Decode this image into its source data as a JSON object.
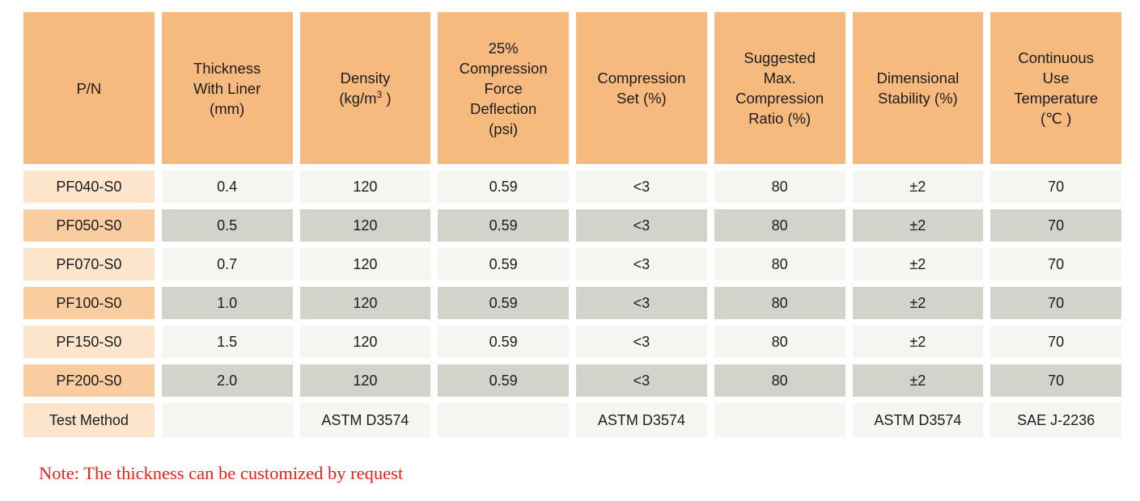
{
  "colors": {
    "header_bg": "#F6BA7F",
    "label_light": "#FCE5CB",
    "label_dark": "#F9CDA0",
    "cell_light": "#F5F5F1",
    "cell_dark": "#D3D3CB",
    "note_color": "#EC2018",
    "text_color": "#1C1C1C"
  },
  "table": {
    "headers": [
      {
        "id": "pn",
        "label": "P/N",
        "lines": [
          [
            {
              "t": "P/N"
            }
          ]
        ]
      },
      {
        "id": "thickness",
        "label": "Thickness With Liner (mm)",
        "lines": [
          [
            {
              "t": "Thickness"
            }
          ],
          [
            {
              "t": "With Liner"
            }
          ],
          [
            {
              "t": "(mm)"
            }
          ]
        ]
      },
      {
        "id": "density",
        "label": "Density (kg/m3 )",
        "lines": [
          [
            {
              "t": "Density"
            }
          ],
          [
            {
              "t": "(kg/m"
            },
            {
              "t": "3",
              "sup": true
            },
            {
              "t": " )"
            }
          ]
        ]
      },
      {
        "id": "cfd",
        "label": "25% Compression Force Deflection (psi)",
        "lines": [
          [
            {
              "t": "25%"
            }
          ],
          [
            {
              "t": "Compression"
            }
          ],
          [
            {
              "t": "Force"
            }
          ],
          [
            {
              "t": "Deflection"
            }
          ],
          [
            {
              "t": "(psi)"
            }
          ]
        ]
      },
      {
        "id": "compression-set",
        "label": "Compression Set (%)",
        "lines": [
          [
            {
              "t": "Compression"
            }
          ],
          [
            {
              "t": "Set (%)"
            }
          ]
        ]
      },
      {
        "id": "max-compression-ratio",
        "label": "Suggested Max. Compression Ratio (%)",
        "lines": [
          [
            {
              "t": "Suggested"
            }
          ],
          [
            {
              "t": "Max."
            }
          ],
          [
            {
              "t": "Compression"
            }
          ],
          [
            {
              "t": "Ratio (%)"
            }
          ]
        ]
      },
      {
        "id": "dimensional-stability",
        "label": "Dimensional Stability (%)",
        "lines": [
          [
            {
              "t": "Dimensional"
            }
          ],
          [
            {
              "t": "Stability (%)"
            }
          ]
        ]
      },
      {
        "id": "continuous-use-temp",
        "label": "Continuous Use Temperature (℃ )",
        "lines": [
          [
            {
              "t": "Continuous"
            }
          ],
          [
            {
              "t": "Use"
            }
          ],
          [
            {
              "t": "Temperature"
            }
          ],
          [
            {
              "t": "(℃ )"
            }
          ]
        ]
      }
    ],
    "rows": [
      {
        "pn": "PF040-S0",
        "values": [
          "0.4",
          "120",
          "0.59",
          "<3",
          "80",
          "±2",
          "70"
        ],
        "shade": "light"
      },
      {
        "pn": "PF050-S0",
        "values": [
          "0.5",
          "120",
          "0.59",
          "<3",
          "80",
          "±2",
          "70"
        ],
        "shade": "dark"
      },
      {
        "pn": "PF070-S0",
        "values": [
          "0.7",
          "120",
          "0.59",
          "<3",
          "80",
          "±2",
          "70"
        ],
        "shade": "light"
      },
      {
        "pn": "PF100-S0",
        "values": [
          "1.0",
          "120",
          "0.59",
          "<3",
          "80",
          "±2",
          "70"
        ],
        "shade": "dark"
      },
      {
        "pn": "PF150-S0",
        "values": [
          "1.5",
          "120",
          "0.59",
          "<3",
          "80",
          "±2",
          "70"
        ],
        "shade": "light"
      },
      {
        "pn": "PF200-S0",
        "values": [
          "2.0",
          "120",
          "0.59",
          "<3",
          "80",
          "±2",
          "70"
        ],
        "shade": "dark"
      }
    ],
    "test_method_row": {
      "label": "Test Method",
      "values": [
        "",
        "ASTM D3574",
        "",
        "ASTM D3574",
        "",
        "ASTM D3574",
        "SAE J-2236"
      ],
      "shade": "light"
    }
  },
  "note": "Note: The thickness can be customized by request"
}
